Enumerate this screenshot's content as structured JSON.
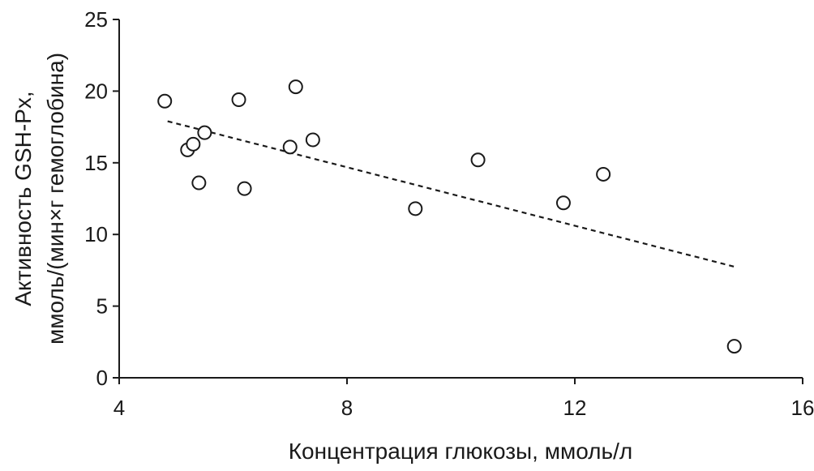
{
  "chart_data": {
    "type": "scatter",
    "title": "",
    "xlabel": "Концентрация глюкозы, ммоль/л",
    "ylabel_lines": [
      "Активность GSH-Px,",
      "ммоль/(мин×г гемоглобина)"
    ],
    "xlim": [
      4,
      16
    ],
    "ylim": [
      0,
      25
    ],
    "x_ticks": [
      "4",
      "8",
      "12",
      "16"
    ],
    "y_ticks": [
      "0",
      "5",
      "10",
      "15",
      "20",
      "25"
    ],
    "grid": false,
    "legend": "none",
    "points": [
      {
        "x": 4.8,
        "y": 19.3
      },
      {
        "x": 5.2,
        "y": 15.9
      },
      {
        "x": 5.3,
        "y": 16.3
      },
      {
        "x": 5.4,
        "y": 13.6
      },
      {
        "x": 5.5,
        "y": 17.1
      },
      {
        "x": 6.1,
        "y": 19.4
      },
      {
        "x": 6.2,
        "y": 13.2
      },
      {
        "x": 7.0,
        "y": 16.1
      },
      {
        "x": 7.1,
        "y": 20.3
      },
      {
        "x": 7.4,
        "y": 16.6
      },
      {
        "x": 9.2,
        "y": 11.8
      },
      {
        "x": 10.3,
        "y": 15.2
      },
      {
        "x": 11.8,
        "y": 12.2
      },
      {
        "x": 12.5,
        "y": 14.2
      },
      {
        "x": 14.8,
        "y": 2.2
      }
    ],
    "trendline": {
      "style": "dashed",
      "x": [
        4.85,
        14.85
      ],
      "y": [
        17.9,
        7.7
      ]
    }
  }
}
